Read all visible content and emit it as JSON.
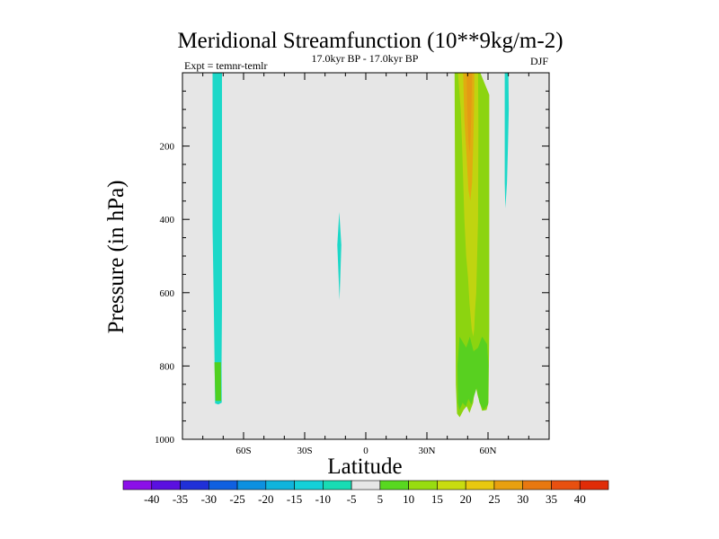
{
  "chart_data": {
    "type": "contour",
    "title": "Meridional Streamfunction (10**9kg/m-2)",
    "subtitle": "17.0kyr BP - 17.0kyr BP",
    "left_label": "Expt = temnr-temlr",
    "right_label": "DJF",
    "xlabel": "Latitude",
    "ylabel": "Pressure (in hPa)",
    "xlim": [
      -90,
      90
    ],
    "ylim": [
      1000,
      0
    ],
    "x_ticks": [
      {
        "value": -60,
        "label": "60S"
      },
      {
        "value": -30,
        "label": "30S"
      },
      {
        "value": 0,
        "label": "0"
      },
      {
        "value": 30,
        "label": "30N"
      },
      {
        "value": 60,
        "label": "60N"
      }
    ],
    "y_ticks": [
      {
        "value": 200,
        "label": "200"
      },
      {
        "value": 400,
        "label": "400"
      },
      {
        "value": 600,
        "label": "600"
      },
      {
        "value": 800,
        "label": "800"
      },
      {
        "value": 1000,
        "label": "1000"
      }
    ],
    "background_color": "#e6e6e6",
    "colorbar": {
      "levels": [
        -40,
        -35,
        -30,
        -25,
        -20,
        -15,
        -10,
        -5,
        5,
        10,
        15,
        20,
        25,
        30,
        35,
        40
      ],
      "labels": [
        "-40",
        "-35",
        "-30",
        "-25",
        "-20",
        "-15",
        "-10",
        "-5",
        "5",
        "10",
        "15",
        "20",
        "25",
        "30",
        "35",
        "40"
      ],
      "colors": [
        "#8b10e8",
        "#5a10e0",
        "#2030d8",
        "#1060e0",
        "#0c90e0",
        "#10b4dc",
        "#14d0d8",
        "#18dcb4",
        "#e6e6e6",
        "#58d820",
        "#98dc10",
        "#c8dc10",
        "#e8c810",
        "#e8a010",
        "#e87810",
        "#e85010",
        "#e02c08"
      ]
    },
    "regions": [
      {
        "name": "southern-polar-cell",
        "value": -5,
        "color": "#1cd8c8",
        "points": [
          [
            -75.2,
            0
          ],
          [
            -70.6,
            0
          ],
          [
            -70.6,
            640
          ],
          [
            -70.8,
            800
          ],
          [
            -70.7,
            900
          ],
          [
            -72.4,
            905
          ],
          [
            -74.0,
            902
          ],
          [
            -74.2,
            800
          ],
          [
            -74.6,
            640
          ],
          [
            -75.2,
            420
          ]
        ]
      },
      {
        "name": "southern-lower-green",
        "value": 5,
        "color": "#50d020",
        "points": [
          [
            -74.3,
            790
          ],
          [
            -71.1,
            790
          ],
          [
            -71.0,
            895
          ],
          [
            -73.8,
            895
          ]
        ]
      },
      {
        "name": "tropical-cell",
        "value": -5,
        "color": "#1cd8c8",
        "points": [
          [
            -13.0,
            380
          ],
          [
            -12.0,
            470
          ],
          [
            -12.9,
            620
          ],
          [
            -14.0,
            470
          ]
        ]
      },
      {
        "name": "northern-hemisphere-cell",
        "value": 10,
        "color": "#8cd410",
        "points": [
          [
            43.6,
            0
          ],
          [
            56.2,
            0
          ],
          [
            60.6,
            60
          ],
          [
            60.6,
            400
          ],
          [
            60.6,
            700
          ],
          [
            60.2,
            900
          ],
          [
            59.3,
            920
          ],
          [
            57.1,
            922
          ],
          [
            54.9,
            880
          ],
          [
            53.8,
            850
          ],
          [
            52.7,
            900
          ],
          [
            50.9,
            928
          ],
          [
            49.5,
            910
          ],
          [
            48.0,
            920
          ],
          [
            46.1,
            940
          ],
          [
            44.8,
            930
          ],
          [
            44.2,
            850
          ],
          [
            44.0,
            600
          ],
          [
            43.8,
            300
          ]
        ]
      },
      {
        "name": "northern-inner-cell",
        "value": 15,
        "color": "#c0d410",
        "points": [
          [
            45.2,
            0
          ],
          [
            55.1,
            0
          ],
          [
            55.3,
            150
          ],
          [
            55.1,
            400
          ],
          [
            54.2,
            600
          ],
          [
            53.6,
            650
          ],
          [
            53.2,
            700
          ],
          [
            52.7,
            720
          ],
          [
            52.0,
            700
          ],
          [
            51.4,
            660
          ],
          [
            50.9,
            630
          ],
          [
            50.2,
            560
          ],
          [
            49.3,
            500
          ],
          [
            48.4,
            400
          ],
          [
            47.3,
            200
          ],
          [
            46.6,
            100
          ]
        ]
      },
      {
        "name": "northern-core-cell",
        "value": 25,
        "color": "#e0ac10",
        "points": [
          [
            47.8,
            0
          ],
          [
            53.3,
            0
          ],
          [
            53.1,
            100
          ],
          [
            52.7,
            200
          ],
          [
            52.2,
            300
          ],
          [
            51.3,
            350
          ],
          [
            50.4,
            320
          ],
          [
            49.5,
            230
          ],
          [
            48.4,
            130
          ]
        ]
      },
      {
        "name": "northern-core-max",
        "value": 30,
        "color": "#e49a14",
        "points": [
          [
            49.5,
            0
          ],
          [
            52.2,
            0
          ],
          [
            51.8,
            120
          ],
          [
            51.1,
            220
          ],
          [
            50.4,
            190
          ],
          [
            49.7,
            90
          ]
        ]
      },
      {
        "name": "northern-lower-green",
        "value": 5,
        "color": "#58d020",
        "points": [
          [
            46.0,
            720
          ],
          [
            49.3,
            750
          ],
          [
            51.1,
            720
          ],
          [
            52.9,
            760
          ],
          [
            55.1,
            750
          ],
          [
            57.1,
            720
          ],
          [
            59.5,
            740
          ],
          [
            60.2,
            800
          ],
          [
            60.0,
            905
          ],
          [
            57.8,
            920
          ],
          [
            55.8,
            900
          ],
          [
            54.4,
            860
          ],
          [
            53.3,
            880
          ],
          [
            51.8,
            905
          ],
          [
            50.4,
            890
          ],
          [
            49.1,
            910
          ],
          [
            47.5,
            900
          ],
          [
            46.0,
            920
          ],
          [
            45.2,
            900
          ],
          [
            45.0,
            800
          ]
        ]
      },
      {
        "name": "northern-polar-cell",
        "value": -5,
        "color": "#1cd8c8",
        "points": [
          [
            68.2,
            0
          ],
          [
            70.0,
            0
          ],
          [
            70.2,
            100
          ],
          [
            69.8,
            200
          ],
          [
            69.3,
            300
          ],
          [
            68.5,
            370
          ],
          [
            68.2,
            300
          ],
          [
            68.2,
            100
          ]
        ]
      }
    ]
  }
}
